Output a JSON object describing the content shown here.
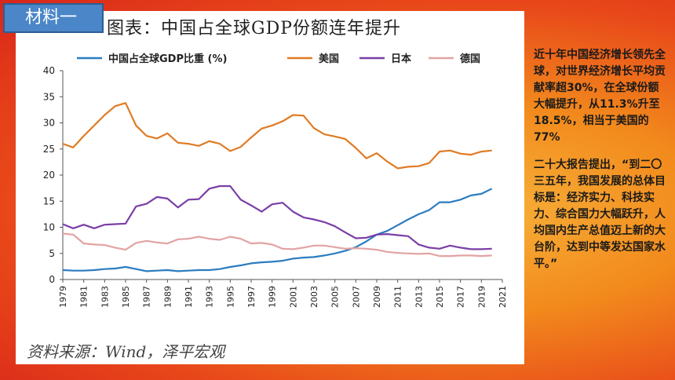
{
  "tag": "材料一",
  "chart_title": "图表：中国占全球GDP份额连年提升",
  "source": "资料来源：Wind，泽平宏观",
  "side": {
    "para1": "近十年中国经济增长领先全球，对世界经济增长平均贡献率超30%，在全球份额大幅提升，从11.3%升至18.5%，相当于美国的77%",
    "para2": "二十大报告提出，“到二〇三五年，我国发展的总体目标是：经济实力、科技实力、综合国力大幅跃升，人均国内生产总值迈上新的大台阶，达到中等发达国家水平。”"
  },
  "chart_data": {
    "type": "line",
    "title": "中国占全球GDP份额连年提升",
    "ylim": [
      0,
      40
    ],
    "yticks": [
      0,
      5,
      10,
      15,
      20,
      25,
      30,
      35,
      40
    ],
    "xticks": [
      "1979",
      "1981",
      "1983",
      "1985",
      "1987",
      "1989",
      "1991",
      "1993",
      "1995",
      "1997",
      "1999",
      "2001",
      "2003",
      "2005",
      "2007",
      "2009",
      "2011",
      "2013",
      "2015",
      "2017",
      "2019",
      "2021"
    ],
    "legend_position": "top",
    "x": [
      1979,
      1980,
      1981,
      1982,
      1983,
      1984,
      1985,
      1986,
      1987,
      1988,
      1989,
      1990,
      1991,
      1992,
      1993,
      1994,
      1995,
      1996,
      1997,
      1998,
      1999,
      2000,
      2001,
      2002,
      2003,
      2004,
      2005,
      2006,
      2007,
      2008,
      2009,
      2010,
      2011,
      2012,
      2013,
      2014,
      2015,
      2016,
      2017,
      2018,
      2019,
      2020
    ],
    "series": [
      {
        "name": "中国占全球GDP比重 (%)",
        "color": "#2b7cc0",
        "values": [
          1.8,
          1.7,
          1.7,
          1.8,
          2.0,
          2.1,
          2.4,
          2.0,
          1.6,
          1.7,
          1.8,
          1.6,
          1.7,
          1.8,
          1.8,
          2.0,
          2.4,
          2.7,
          3.1,
          3.3,
          3.4,
          3.6,
          4.0,
          4.2,
          4.3,
          4.6,
          5.0,
          5.5,
          6.2,
          7.3,
          8.6,
          9.3,
          10.4,
          11.5,
          12.5,
          13.3,
          14.8,
          14.8,
          15.3,
          16.1,
          16.4,
          17.4
        ]
      },
      {
        "name": "美国",
        "color": "#e07b24",
        "values": [
          26.0,
          25.3,
          27.5,
          29.5,
          31.5,
          33.2,
          33.8,
          29.5,
          27.5,
          27.0,
          28.0,
          26.2,
          26.0,
          25.6,
          26.5,
          26.0,
          24.6,
          25.4,
          27.2,
          28.9,
          29.5,
          30.3,
          31.5,
          31.4,
          29.0,
          27.8,
          27.4,
          26.9,
          25.2,
          23.2,
          24.2,
          22.6,
          21.3,
          21.6,
          21.7,
          22.3,
          24.5,
          24.7,
          24.1,
          23.9,
          24.5,
          24.7
        ]
      },
      {
        "name": "日本",
        "color": "#7a3fa6",
        "values": [
          10.6,
          9.8,
          10.5,
          9.8,
          10.5,
          10.6,
          10.7,
          14.0,
          14.5,
          15.8,
          15.5,
          13.8,
          15.3,
          15.4,
          17.4,
          17.9,
          17.9,
          15.3,
          14.2,
          13.0,
          14.4,
          14.7,
          13.0,
          11.9,
          11.5,
          11.0,
          10.2,
          9.0,
          7.9,
          8.0,
          8.6,
          8.7,
          8.5,
          8.3,
          6.7,
          6.1,
          5.9,
          6.5,
          6.1,
          5.8,
          5.8,
          5.9
        ]
      },
      {
        "name": "德国",
        "color": "#e3a3a3",
        "values": [
          8.8,
          8.6,
          6.9,
          6.7,
          6.6,
          6.1,
          5.7,
          7.0,
          7.4,
          7.1,
          6.9,
          7.7,
          7.8,
          8.2,
          7.8,
          7.6,
          8.2,
          7.8,
          6.9,
          7.0,
          6.7,
          5.9,
          5.8,
          6.1,
          6.5,
          6.5,
          6.2,
          5.9,
          6.0,
          5.9,
          5.7,
          5.3,
          5.1,
          5.0,
          4.9,
          5.0,
          4.5,
          4.5,
          4.6,
          4.6,
          4.5,
          4.6
        ]
      }
    ]
  }
}
